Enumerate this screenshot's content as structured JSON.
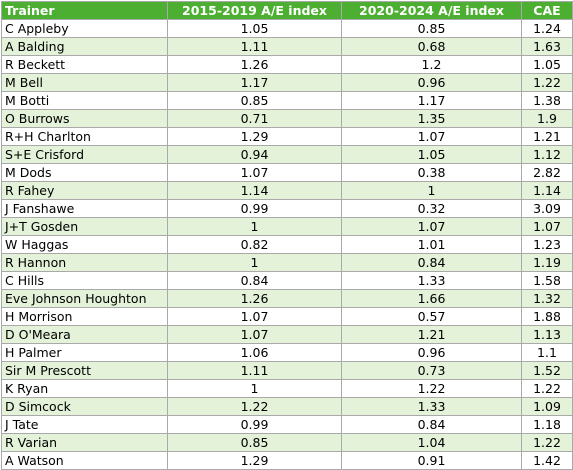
{
  "colors": {
    "header_bg": "#4caf32",
    "header_text": "#ffffff",
    "row_alt_bg": "#e3f2d8",
    "row_bg": "#ffffff",
    "border": "#a9a9a9"
  },
  "table": {
    "headers": [
      "Trainer",
      "2015-2019 A/E index",
      "2020-2024 A/E index",
      "CAE"
    ],
    "rows": [
      [
        "C Appleby",
        "1.05",
        "0.85",
        "1.24"
      ],
      [
        "A Balding",
        "1.11",
        "0.68",
        "1.63"
      ],
      [
        "R Beckett",
        "1.26",
        "1.2",
        "1.05"
      ],
      [
        "M Bell",
        "1.17",
        "0.96",
        "1.22"
      ],
      [
        "M Botti",
        "0.85",
        "1.17",
        "1.38"
      ],
      [
        "O Burrows",
        "0.71",
        "1.35",
        "1.9"
      ],
      [
        "R+H Charlton",
        "1.29",
        "1.07",
        "1.21"
      ],
      [
        "S+E Crisford",
        "0.94",
        "1.05",
        "1.12"
      ],
      [
        "M Dods",
        "1.07",
        "0.38",
        "2.82"
      ],
      [
        "R Fahey",
        "1.14",
        "1",
        "1.14"
      ],
      [
        "J Fanshawe",
        "0.99",
        "0.32",
        "3.09"
      ],
      [
        "J+T Gosden",
        "1",
        "1.07",
        "1.07"
      ],
      [
        "W Haggas",
        "0.82",
        "1.01",
        "1.23"
      ],
      [
        "R Hannon",
        "1",
        "0.84",
        "1.19"
      ],
      [
        "C Hills",
        "0.84",
        "1.33",
        "1.58"
      ],
      [
        "Eve Johnson Houghton",
        "1.26",
        "1.66",
        "1.32"
      ],
      [
        "H Morrison",
        "1.07",
        "0.57",
        "1.88"
      ],
      [
        "D O'Meara",
        "1.07",
        "1.21",
        "1.13"
      ],
      [
        "H Palmer",
        "1.06",
        "0.96",
        "1.1"
      ],
      [
        "Sir M Prescott",
        "1.11",
        "0.73",
        "1.52"
      ],
      [
        "K Ryan",
        "1",
        "1.22",
        "1.22"
      ],
      [
        "D Simcock",
        "1.22",
        "1.33",
        "1.09"
      ],
      [
        "J Tate",
        "0.99",
        "0.84",
        "1.18"
      ],
      [
        "R Varian",
        "0.85",
        "1.04",
        "1.22"
      ],
      [
        "A Watson",
        "1.29",
        "0.91",
        "1.42"
      ]
    ]
  }
}
